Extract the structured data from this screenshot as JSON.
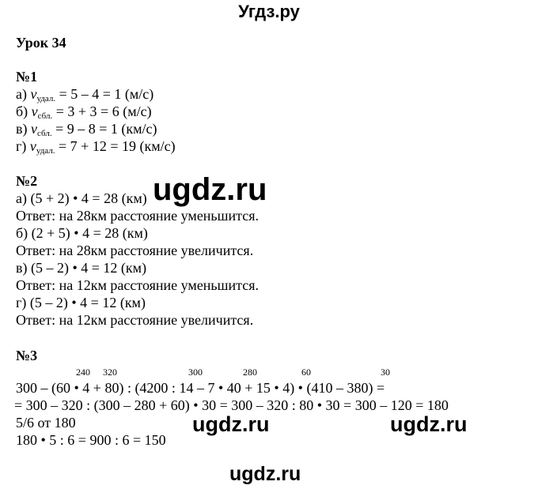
{
  "site_title": "Угдз.ру",
  "lesson_title": "Урок 34",
  "task1": {
    "title": "№1",
    "lines": [
      {
        "prefix": "а) ",
        "var": "v",
        "sub": "удал.",
        "rest": " = 5 – 4 = 1 (м/с)"
      },
      {
        "prefix": "б) ",
        "var": "v",
        "sub": "сбл.",
        "rest": " = 3 + 3 = 6 (м/с)"
      },
      {
        "prefix": "в) ",
        "var": "v",
        "sub": "сбл.",
        "rest": " = 9 – 8 = 1 (км/с)"
      },
      {
        "prefix": "г) ",
        "var": "v",
        "sub": "удал.",
        "rest": " = 7 + 12 = 19 (км/с)"
      }
    ]
  },
  "task2": {
    "title": "№2",
    "lines": [
      "а) (5 + 2) • 4 = 28 (км)",
      "Ответ: на 28км расстояние уменьшится.",
      "б) (2 + 5) • 4 = 28 (км)",
      "Ответ: на 28км расстояние увеличится.",
      "в) (5 – 2) • 4 = 12 (км)",
      "Ответ: на 12км расстояние уменьшится.",
      "г) (5 – 2) • 4 = 12 (км)",
      "Ответ: на 12км расстояние увеличится."
    ]
  },
  "task3": {
    "title": "№3",
    "intermediate": [
      "240",
      "320",
      "300",
      "280",
      "60",
      "30"
    ],
    "lines": [
      "300 – (60 • 4 + 80) : (4200 : 14 – 7 • 40 + 15 • 4) • (410 – 380) =",
      "= 300 – 320 : (300 – 280 + 60) • 30 = 300 – 320 : 80 • 30 = 300 – 120 = 180",
      "5/6 от 180",
      "180 • 5 : 6 = 900 : 6 = 150"
    ]
  },
  "watermarks": [
    "ugdz.ru",
    "ugdz.ru",
    "ugdz.ru",
    "ugdz.ru"
  ]
}
